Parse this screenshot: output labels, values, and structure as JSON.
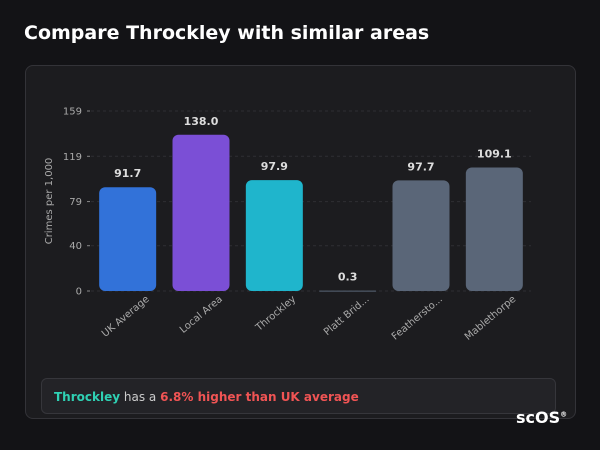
{
  "header": {
    "title": "Compare Throckley with similar areas"
  },
  "chart_data": {
    "type": "bar",
    "y_label": "Crimes per 1,000",
    "categories": [
      "UK Average",
      "Local Area",
      "Throckley",
      "Platt Brid...",
      "Feathersto...",
      "Mablethorpe"
    ],
    "values": [
      91.7,
      138.0,
      97.9,
      0.3,
      97.7,
      109.1
    ],
    "value_labels": [
      "91.7",
      "138.0",
      "97.9",
      "0.3",
      "97.7",
      "109.1"
    ],
    "colors": [
      "#3272d9",
      "#7b4fd6",
      "#1fb5cc",
      "#5a6678",
      "#5a6678",
      "#5a6678"
    ],
    "ylim": [
      0,
      159
    ],
    "yticks": [
      0,
      40,
      79,
      119,
      159
    ],
    "grid": true
  },
  "summary": {
    "subject": "Throckley",
    "text": "has a",
    "highlight": "6.8% higher than UK average"
  },
  "logo": {
    "text": "scOS",
    "mark": "®"
  }
}
